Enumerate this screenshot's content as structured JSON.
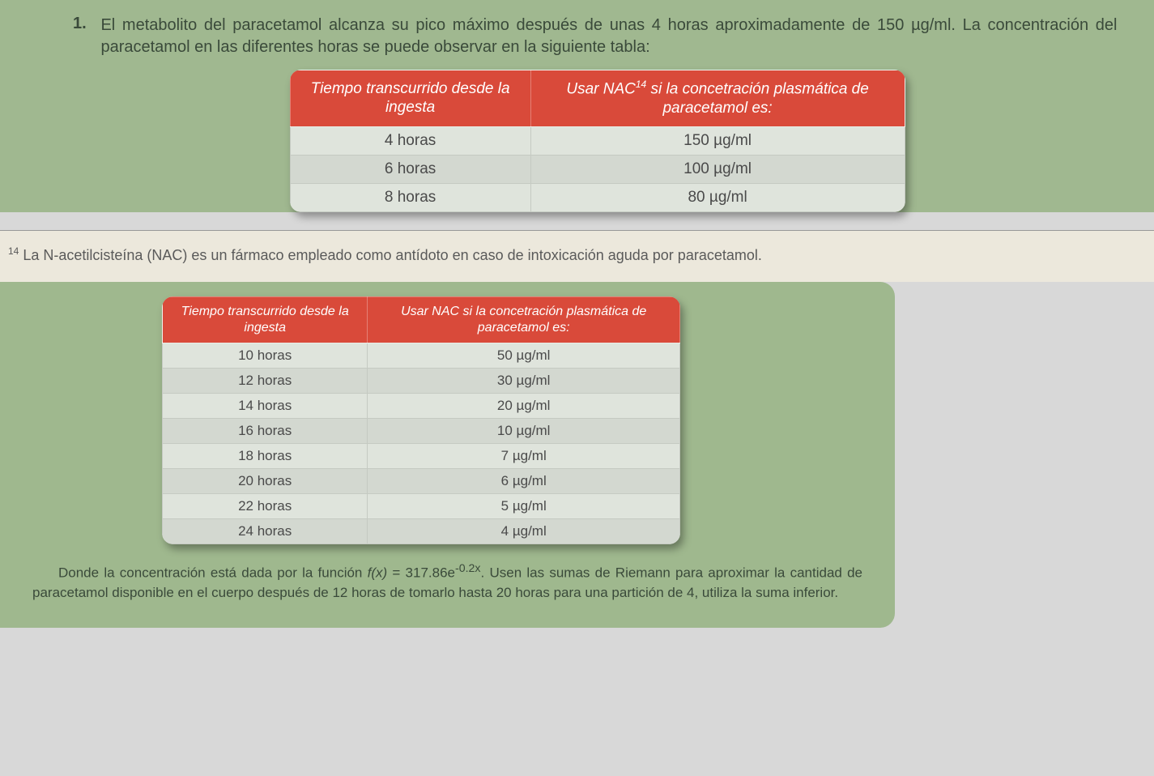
{
  "question": {
    "number": "1.",
    "text": "El metabolito del paracetamol alcanza su pico máximo después de unas 4 horas aproximadamente de 150 µg/ml. La concentración del paracetamol en las diferentes horas se puede observar en la siguiente tabla:"
  },
  "table1": {
    "header_left": "Tiempo transcurrido desde la ingesta",
    "header_right_pre": "Usar NAC",
    "header_right_sup": "14",
    "header_right_post": " si la concetración plasmática de paracetamol es:",
    "rows": [
      {
        "time": "4 horas",
        "conc": "150 µg/ml"
      },
      {
        "time": "6 horas",
        "conc": "100 µg/ml"
      },
      {
        "time": "8 horas",
        "conc": "80 µg/ml"
      }
    ],
    "header_bg": "#d94a3a",
    "header_fg": "#ffffff",
    "row_bg_odd": "#d3d8d0",
    "row_bg_even": "#dfe4dc"
  },
  "footnote": {
    "sup": "14",
    "text": " La N-acetilcisteína (NAC) es un fármaco empleado como antídoto en caso de intoxicación aguda por paracetamol."
  },
  "table2": {
    "header_left": "Tiempo transcurrido desde la ingesta",
    "header_right": "Usar NAC si la concetración plasmática de paracetamol es:",
    "rows": [
      {
        "time": "10 horas",
        "conc": "50 µg/ml"
      },
      {
        "time": "12 horas",
        "conc": "30 µg/ml"
      },
      {
        "time": "14 horas",
        "conc": "20 µg/ml"
      },
      {
        "time": "16 horas",
        "conc": "10 µg/ml"
      },
      {
        "time": "18 horas",
        "conc": "7 µg/ml"
      },
      {
        "time": "20 horas",
        "conc": "6 µg/ml"
      },
      {
        "time": "22 horas",
        "conc": "5 µg/ml"
      },
      {
        "time": "24 horas",
        "conc": "4 µg/ml"
      }
    ]
  },
  "bottom_paragraph": {
    "pre": "Donde la concentración está dada por la función ",
    "fx": "f(x)",
    "eq": " = 317.86e",
    "exp": "-0.2x",
    "post": ". Usen las sumas de Riemann para aproximar la cantidad de paracetamol disponible en el cuerpo después de 12 horas de tomarlo hasta 20 horas para una partición de 4, utiliza la suma inferior."
  },
  "colors": {
    "page_green": "#a0b890",
    "page_green2": "#9fb88e",
    "red_header": "#d94a3a",
    "footnote_bg": "#ece8dc"
  }
}
